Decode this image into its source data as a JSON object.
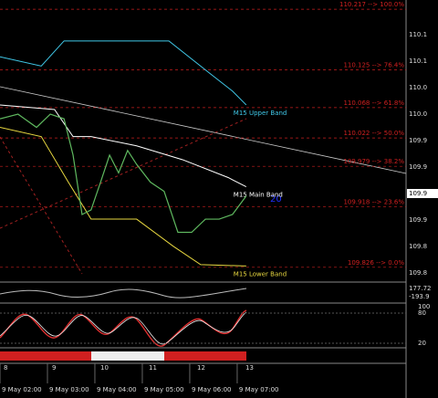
{
  "chart_data": {
    "type": "line",
    "xlim": [
      2.0,
      10.56
    ],
    "ylim": [
      109.805,
      110.231
    ],
    "xticks": [
      {
        "value": 2,
        "label": "9 May 02:00"
      },
      {
        "value": 3,
        "label": "9 May 03:00"
      },
      {
        "value": 4,
        "label": "9 May 04:00"
      },
      {
        "value": 5,
        "label": "9 May 05:00"
      },
      {
        "value": 6,
        "label": "9 May 06:00"
      },
      {
        "value": 7,
        "label": "9 May 07:00"
      }
    ],
    "levels": [
      {
        "value": 110.217,
        "label": "110.217 --> 100.0%"
      },
      {
        "value": 110.125,
        "label": "110.125 --> 76.4%"
      },
      {
        "value": 110.068,
        "label": "110.068 --> 61.8%"
      },
      {
        "value": 110.022,
        "label": "110.022 --> 50.0%"
      },
      {
        "value": 109.979,
        "label": "109.979 --> 38.2%"
      },
      {
        "value": 109.918,
        "label": "109.918 --> 23.6%"
      },
      {
        "value": 109.826,
        "label": "109.826 --> 0.0%"
      }
    ],
    "level_color": "#c81e1e",
    "series": [
      {
        "name": "M15 Upper Band",
        "color": "#40c8e8",
        "x": [
          2.0,
          2.87,
          3.35,
          3.92,
          5.56,
          6.42,
          6.9,
          7.19
        ],
        "values": [
          110.145,
          110.131,
          110.169,
          110.169,
          110.169,
          110.12,
          110.093,
          110.072
        ]
      },
      {
        "name": "M15 Main Band",
        "color": "#ffffff",
        "x": [
          2.0,
          3.15,
          3.54,
          3.92,
          4.88,
          5.85,
          6.81,
          7.19
        ],
        "values": [
          110.072,
          110.065,
          110.024,
          110.024,
          110.01,
          109.989,
          109.962,
          109.948
        ]
      },
      {
        "name": "M15 Lower Band",
        "color": "#e8d840",
        "x": [
          2.0,
          2.87,
          3.44,
          3.92,
          4.88,
          5.65,
          6.23,
          7.19
        ],
        "values": [
          110.038,
          110.024,
          109.955,
          109.899,
          109.899,
          109.858,
          109.83,
          109.828
        ]
      },
      {
        "color": "#5fb85f",
        "x": [
          2.0,
          2.38,
          2.77,
          3.06,
          3.35,
          3.54,
          3.73,
          3.92,
          4.12,
          4.31,
          4.5,
          4.69,
          4.88,
          5.17,
          5.46,
          5.75,
          6.04,
          6.33,
          6.62,
          6.9,
          7.19
        ],
        "values": [
          110.051,
          110.058,
          110.038,
          110.058,
          110.051,
          109.996,
          109.906,
          109.913,
          109.955,
          109.996,
          109.969,
          110.003,
          109.982,
          109.955,
          109.941,
          109.879,
          109.879,
          109.899,
          109.899,
          109.906,
          109.934
        ]
      }
    ],
    "band_period": "20",
    "price_axis": [
      "110.1",
      "110.1",
      "110.0",
      "110.0",
      "109.9",
      "109.9",
      "109.9",
      "109.9",
      "109.8",
      "109.8"
    ],
    "bar_axis": [
      "8",
      "9",
      "10",
      "11",
      "12",
      "13"
    ],
    "cci_labels": [
      "177.72",
      "-193.9"
    ],
    "stoch_labels": [
      "100",
      "80",
      "20"
    ]
  }
}
